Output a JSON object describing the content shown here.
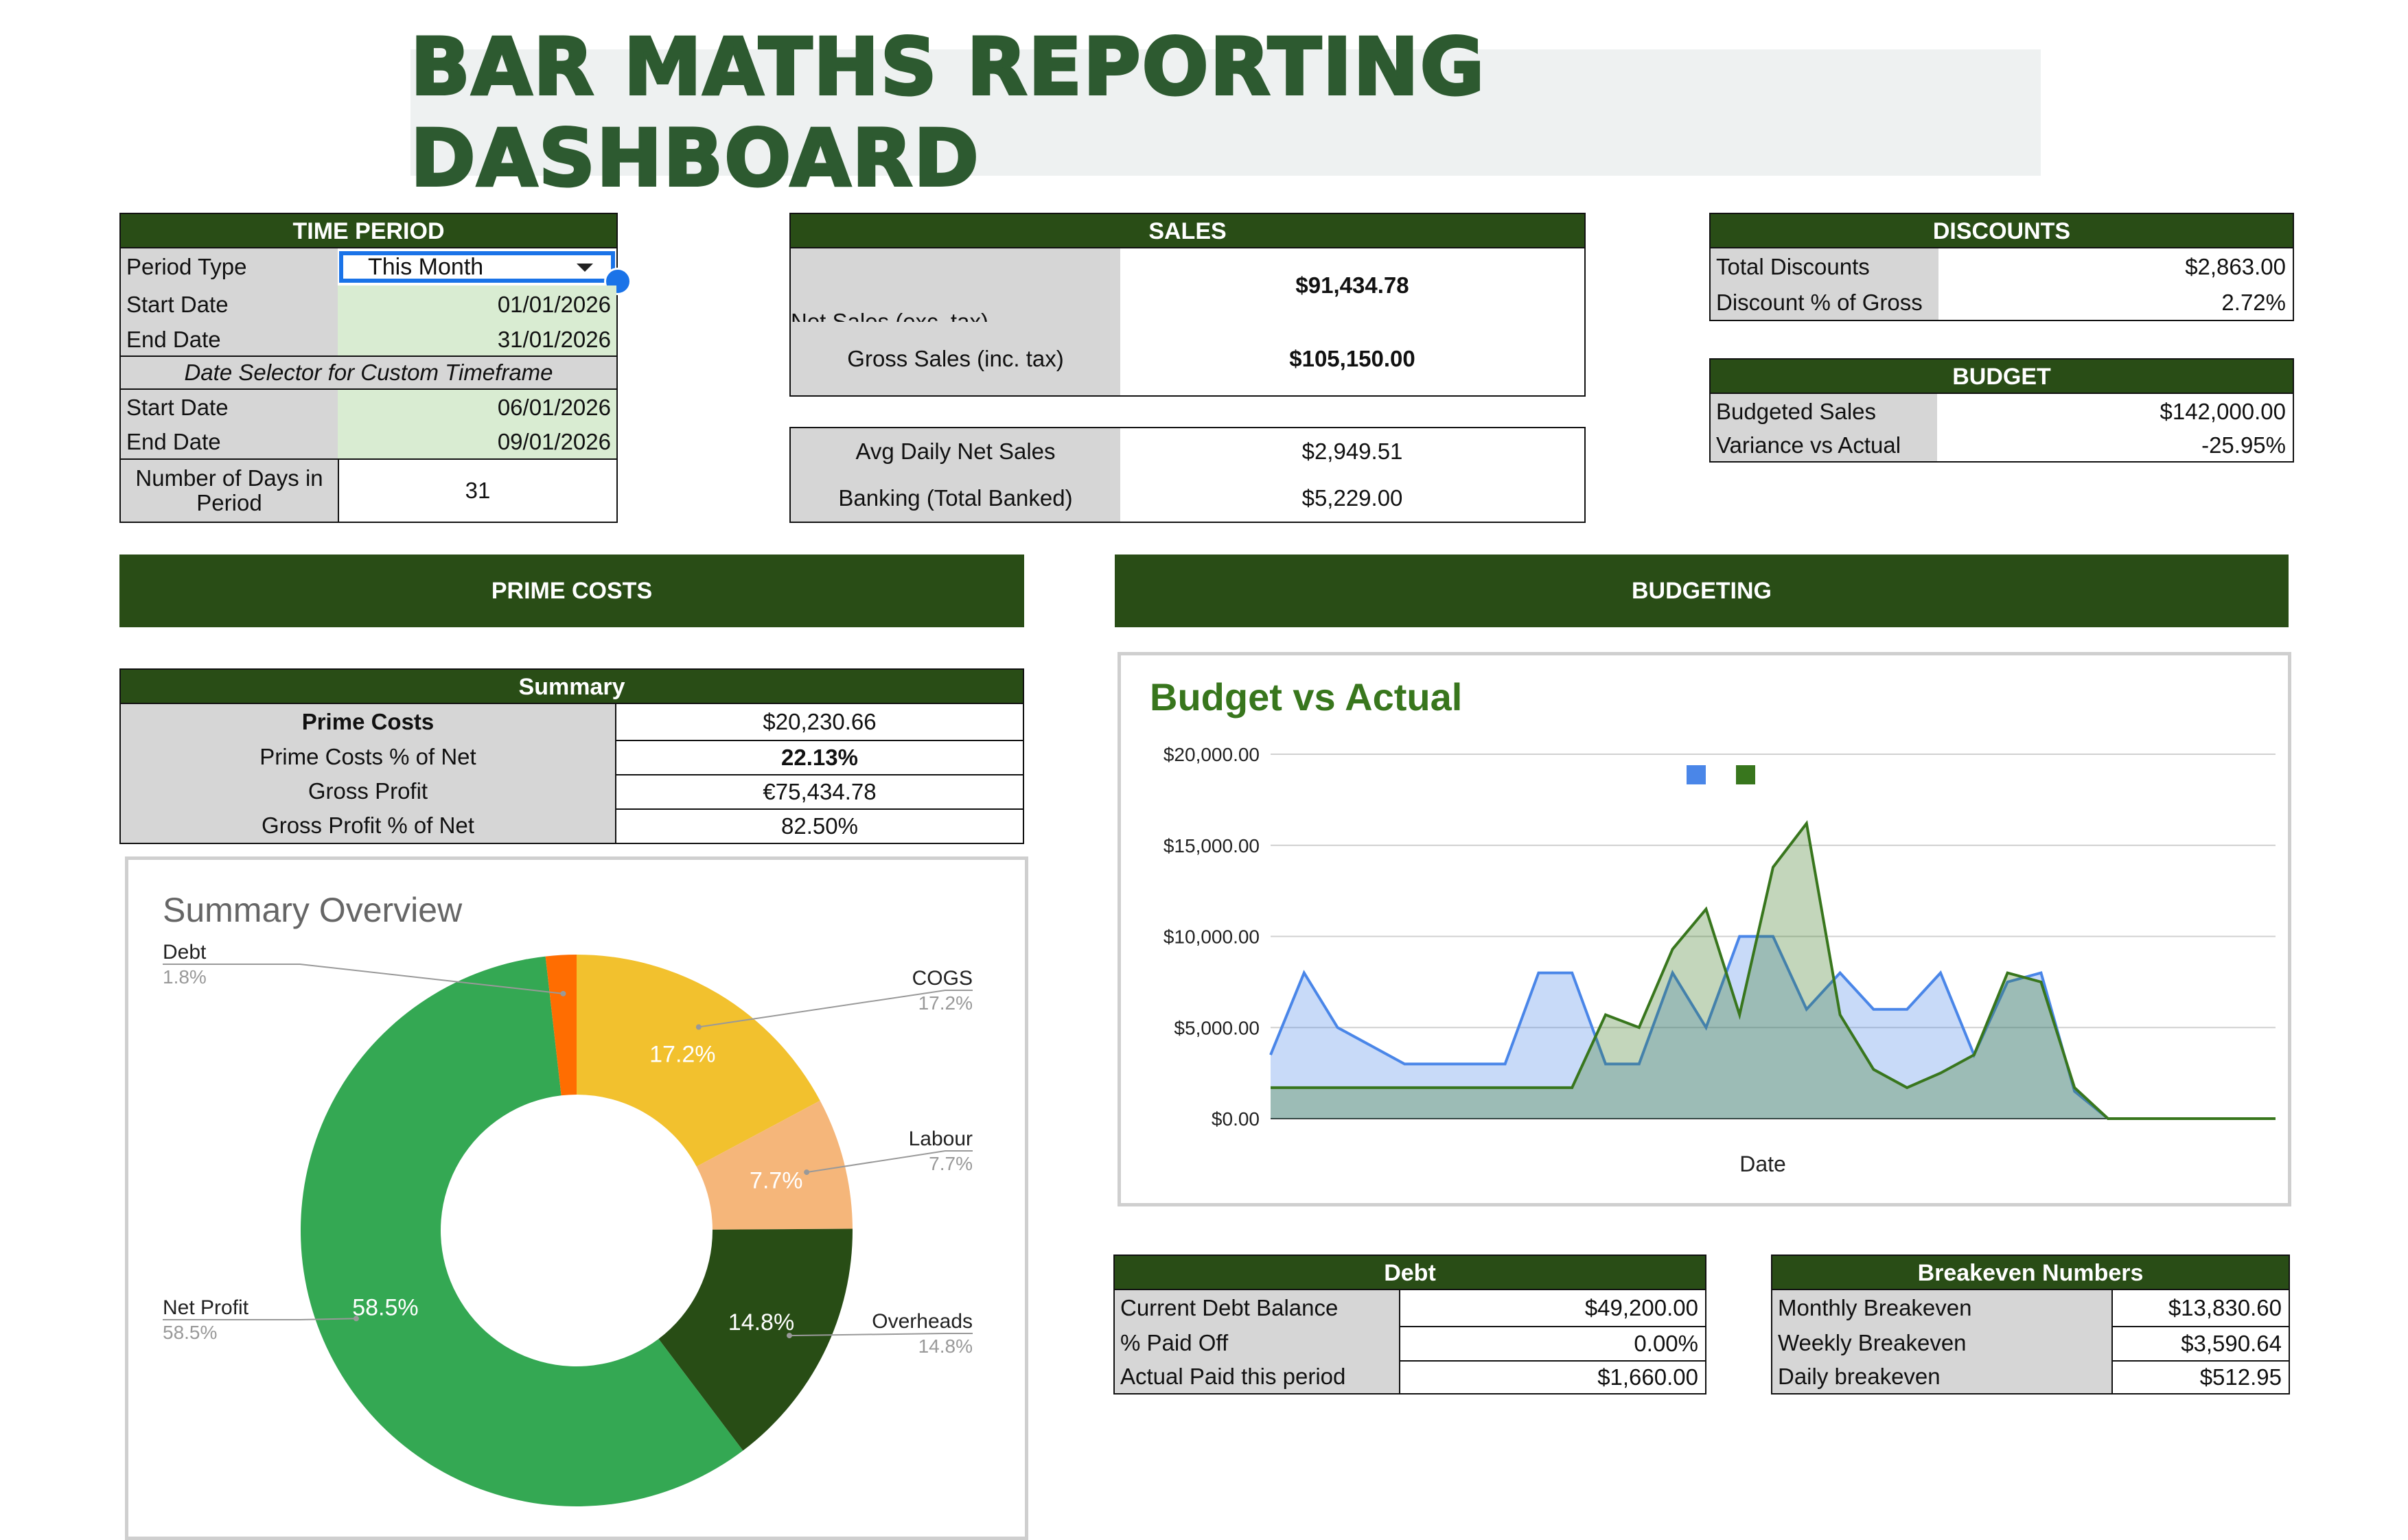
{
  "title": "BAR MATHS REPORTING DASHBOARD",
  "time_period": {
    "header": "TIME PERIOD",
    "period_type_label": "Period Type",
    "period_type_value": "This Month",
    "start_date_label": "Start Date",
    "start_date_value": "01/01/2026",
    "end_date_label": "End Date",
    "end_date_value": "31/01/2026",
    "custom_header": "Date Selector for Custom Timeframe",
    "custom_start_label": "Start Date",
    "custom_start_value": "06/01/2026",
    "custom_end_label": "End Date",
    "custom_end_value": "09/01/2026",
    "days_label": "Number of Days in Period",
    "days_value": "31"
  },
  "sales": {
    "header": "SALES",
    "net_label": "Net Sales (exc. tax)",
    "net_value": "$91,434.78",
    "gross_label": "Gross Sales (inc. tax)",
    "gross_value": "$105,150.00",
    "avg_label": "Avg Daily Net Sales",
    "avg_value": "$2,949.51",
    "banking_label": "Banking (Total Banked)",
    "banking_value": "$5,229.00"
  },
  "discounts": {
    "header": "DISCOUNTS",
    "total_label": "Total Discounts",
    "total_value": "$2,863.00",
    "pct_label": "Discount % of Gross",
    "pct_value": "2.72%"
  },
  "budget": {
    "header": "BUDGET",
    "budgeted_label": "Budgeted Sales",
    "budgeted_value": "$142,000.00",
    "variance_label": "Variance vs Actual",
    "variance_value": "-25.95%"
  },
  "prime_costs": {
    "banner": "PRIME COSTS",
    "summary_header": "Summary",
    "rows": [
      {
        "label": "Prime Costs",
        "value": "$20,230.66"
      },
      {
        "label": "Prime Costs % of Net",
        "value": "22.13%"
      },
      {
        "label": "Gross Profit",
        "value": "€75,434.78"
      },
      {
        "label": "Gross Profit % of Net",
        "value": "82.50%"
      }
    ]
  },
  "budgeting": {
    "banner": "BUDGETING"
  },
  "pie_chart": {
    "title": "Summary Overview",
    "colors": [
      "#f2c12e",
      "#f5b67a",
      "#284d15",
      "#34a853",
      "#ff6d01"
    ],
    "slices": [
      {
        "name": "COGS",
        "value": 17.2,
        "label": "17.2%"
      },
      {
        "name": "Labour",
        "value": 7.7,
        "label": "7.7%"
      },
      {
        "name": "Overheads",
        "value": 14.8,
        "label": "14.8%"
      },
      {
        "name": "Net Profit",
        "value": 58.5,
        "label": "58.5%"
      },
      {
        "name": "Debt",
        "value": 1.8,
        "label": "1.8%"
      }
    ]
  },
  "chart_data": {
    "type": "area",
    "title": "Budget vs Actual",
    "xlabel": "Date",
    "ylabel": "",
    "ylim": [
      0,
      20000
    ],
    "yticks": [
      "$0.00",
      "$5,000.00",
      "$10,000.00",
      "$15,000.00",
      "$20,000.00"
    ],
    "legend": "top",
    "x": [
      1,
      2,
      3,
      4,
      5,
      6,
      7,
      8,
      9,
      10,
      11,
      12,
      13,
      14,
      15,
      16,
      17,
      18,
      19,
      20,
      21,
      22,
      23,
      24,
      25,
      26,
      27,
      28,
      29,
      30,
      31
    ],
    "series": [
      {
        "color": "#4a86e8",
        "values": [
          3500,
          8000,
          5000,
          4000,
          3000,
          3000,
          3000,
          3000,
          8000,
          8000,
          3000,
          3000,
          8000,
          5000,
          10000,
          10000,
          6000,
          8000,
          6000,
          6000,
          8000,
          3500,
          7500,
          8000,
          1500,
          0,
          0,
          0,
          0,
          0,
          0
        ]
      },
      {
        "color": "#38761d",
        "values": [
          1700,
          1700,
          1700,
          1700,
          1700,
          1700,
          1700,
          1700,
          1700,
          1700,
          5700,
          5000,
          9300,
          11500,
          5700,
          13800,
          16200,
          5700,
          2700,
          1700,
          2500,
          3500,
          8000,
          7500,
          1700,
          0,
          0,
          0,
          0,
          0,
          0
        ]
      }
    ]
  },
  "debt": {
    "header": "Debt",
    "balance_label": "Current Debt Balance",
    "balance_value": "$49,200.00",
    "paid_label": "% Paid Off",
    "paid_value": "0.00%",
    "actual_label": "Actual Paid this period",
    "actual_value": "$1,660.00"
  },
  "breakeven": {
    "header": "Breakeven Numbers",
    "monthly_label": "Monthly Breakeven",
    "monthly_value": "$13,830.60",
    "weekly_label": "Weekly Breakeven",
    "weekly_value": "$3,590.64",
    "daily_label": "Daily breakeven",
    "daily_value": "$512.95"
  }
}
